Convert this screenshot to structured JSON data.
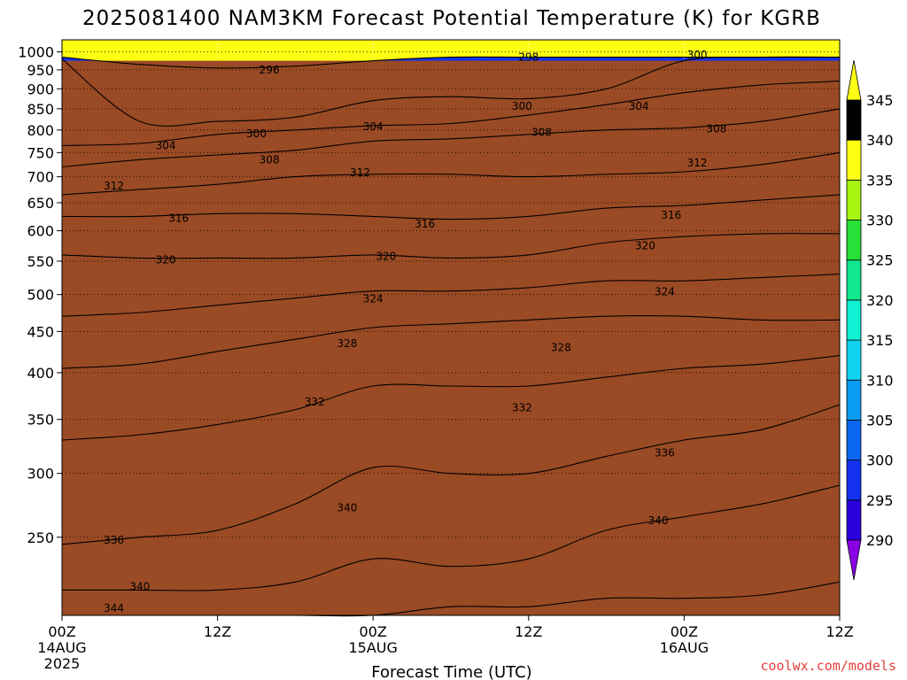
{
  "title": "2025081400 NAM3KM Forecast Potential Temperature (K) for KGRB",
  "xlabel": "Forecast Time (UTC)",
  "credit": "coolwx.com/models",
  "colors": {
    "ground": "#9a4a24",
    "bands": [
      "#8a00e6",
      "#2a00dc",
      "#1432ee",
      "#0a66f0",
      "#0a9cf0",
      "#12d2f2",
      "#10f0d2",
      "#12e68e",
      "#26e038",
      "#a6f410",
      "#fefe14"
    ]
  },
  "chart_data": {
    "type": "contour",
    "title": "2025081400 NAM3KM Forecast Potential Temperature (K) for KGRB",
    "xlabel": "Forecast Time (UTC)",
    "ylabel": "",
    "x_ticks": [
      {
        "t": 0,
        "hour": "00Z",
        "date": "14AUG",
        "year": "2025"
      },
      {
        "t": 12,
        "hour": "12Z",
        "date": "",
        "year": ""
      },
      {
        "t": 24,
        "hour": "00Z",
        "date": "15AUG",
        "year": ""
      },
      {
        "t": 36,
        "hour": "12Z",
        "date": "",
        "year": ""
      },
      {
        "t": 48,
        "hour": "00Z",
        "date": "16AUG",
        "year": ""
      },
      {
        "t": 60,
        "hour": "12Z",
        "date": "",
        "year": ""
      }
    ],
    "xlim": [
      0,
      60
    ],
    "y_ticks": [
      1000,
      950,
      900,
      850,
      800,
      750,
      700,
      650,
      600,
      550,
      500,
      450,
      400,
      350,
      300,
      250
    ],
    "ylim": [
      1035,
      200
    ],
    "y_scale": "log",
    "colorbar": {
      "levels": [
        290,
        295,
        300,
        305,
        310,
        315,
        320,
        325,
        330,
        335,
        340,
        345
      ],
      "labels": [
        "290",
        "295",
        "300",
        "305",
        "310",
        "315",
        "320",
        "325",
        "330",
        "335",
        "340",
        "345"
      ]
    },
    "contour_interval_K": 4,
    "ground_level_hPa": 975,
    "x_samples_hours": [
      0,
      6,
      12,
      18,
      24,
      30,
      36,
      42,
      48,
      54,
      60
    ],
    "isentropes": [
      {
        "theta": 296,
        "p": [
          985,
          965,
          955,
          960,
          975,
          985,
          985,
          985,
          985,
          985,
          985
        ]
      },
      {
        "theta": 300,
        "p": [
          980,
          820,
          820,
          830,
          870,
          880,
          875,
          900,
          975,
          985,
          985
        ]
      },
      {
        "theta": 304,
        "p": [
          765,
          770,
          790,
          800,
          810,
          815,
          835,
          860,
          890,
          910,
          920
        ]
      },
      {
        "theta": 308,
        "p": [
          720,
          735,
          745,
          755,
          775,
          780,
          790,
          800,
          805,
          820,
          850
        ]
      },
      {
        "theta": 312,
        "p": [
          665,
          675,
          685,
          700,
          705,
          705,
          700,
          705,
          710,
          725,
          750
        ]
      },
      {
        "theta": 316,
        "p": [
          625,
          625,
          630,
          630,
          625,
          620,
          625,
          640,
          645,
          655,
          665
        ]
      },
      {
        "theta": 320,
        "p": [
          560,
          555,
          555,
          555,
          560,
          555,
          560,
          580,
          590,
          595,
          595
        ]
      },
      {
        "theta": 324,
        "p": [
          470,
          475,
          485,
          495,
          505,
          505,
          510,
          520,
          520,
          525,
          530
        ]
      },
      {
        "theta": 328,
        "p": [
          405,
          410,
          425,
          440,
          455,
          460,
          465,
          470,
          470,
          465,
          465
        ]
      },
      {
        "theta": 332,
        "p": [
          330,
          335,
          345,
          360,
          385,
          385,
          385,
          395,
          405,
          410,
          420
        ]
      },
      {
        "theta": 336,
        "p": [
          245,
          250,
          255,
          275,
          305,
          300,
          300,
          315,
          330,
          340,
          365
        ]
      },
      {
        "theta": 340,
        "p": [
          215,
          215,
          215,
          220,
          235,
          230,
          235,
          255,
          265,
          275,
          290
        ]
      },
      {
        "theta": 344,
        "p": [
          200,
          200,
          200,
          200,
          200,
          205,
          205,
          210,
          210,
          212,
          220
        ]
      }
    ],
    "contour_labels": [
      {
        "text": "344",
        "t": 4.0,
        "p": 204
      },
      {
        "text": "340",
        "t": 6.0,
        "p": 217
      },
      {
        "text": "336",
        "t": 4.0,
        "p": 248
      },
      {
        "text": "340",
        "t": 22.0,
        "p": 272
      },
      {
        "text": "340",
        "t": 46.0,
        "p": 262
      },
      {
        "text": "336",
        "t": 46.5,
        "p": 318
      },
      {
        "text": "332",
        "t": 19.5,
        "p": 368
      },
      {
        "text": "332",
        "t": 35.5,
        "p": 362
      },
      {
        "text": "328",
        "t": 22.0,
        "p": 435
      },
      {
        "text": "328",
        "t": 38.5,
        "p": 430
      },
      {
        "text": "324",
        "t": 24.0,
        "p": 494
      },
      {
        "text": "324",
        "t": 46.5,
        "p": 504
      },
      {
        "text": "320",
        "t": 8.0,
        "p": 552
      },
      {
        "text": "320",
        "t": 25.0,
        "p": 558
      },
      {
        "text": "320",
        "t": 45.0,
        "p": 575
      },
      {
        "text": "316",
        "t": 9.0,
        "p": 622
      },
      {
        "text": "316",
        "t": 28.0,
        "p": 612
      },
      {
        "text": "316",
        "t": 47.0,
        "p": 627
      },
      {
        "text": "312",
        "t": 4.0,
        "p": 682
      },
      {
        "text": "312",
        "t": 23.0,
        "p": 708
      },
      {
        "text": "312",
        "t": 49.0,
        "p": 728
      },
      {
        "text": "308",
        "t": 16.0,
        "p": 735
      },
      {
        "text": "308",
        "t": 37.0,
        "p": 795
      },
      {
        "text": "308",
        "t": 50.5,
        "p": 803
      },
      {
        "text": "304",
        "t": 8.0,
        "p": 765
      },
      {
        "text": "304",
        "t": 24.0,
        "p": 808
      },
      {
        "text": "304",
        "t": 44.5,
        "p": 856
      },
      {
        "text": "300",
        "t": 15.0,
        "p": 792
      },
      {
        "text": "300",
        "t": 35.5,
        "p": 856
      },
      {
        "text": "300",
        "t": 49.0,
        "p": 992
      },
      {
        "text": "296",
        "t": 16.0,
        "p": 950
      },
      {
        "text": "298",
        "t": 36.0,
        "p": 985
      }
    ]
  }
}
